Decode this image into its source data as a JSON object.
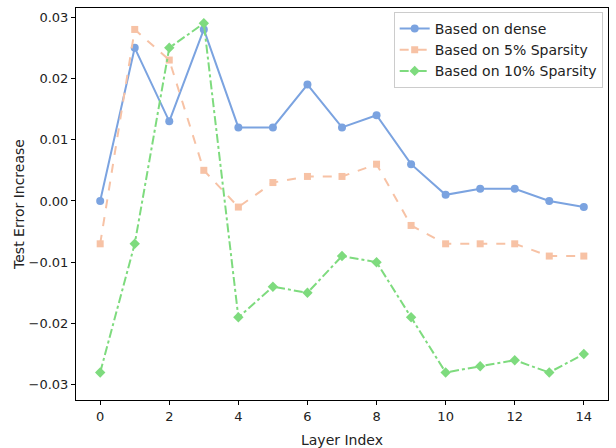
{
  "chart_data": {
    "type": "line",
    "x_label": "Layer Index",
    "y_label": "Test Error Increase",
    "x": [
      0,
      1,
      2,
      3,
      4,
      5,
      6,
      7,
      8,
      9,
      10,
      11,
      12,
      13,
      14
    ],
    "series": [
      {
        "name": "Based on dense",
        "color": "#7ba3e0",
        "marker": "circle",
        "line_style": "solid",
        "values": [
          0.0,
          0.025,
          0.013,
          0.028,
          0.012,
          0.012,
          0.019,
          0.012,
          0.014,
          0.006,
          0.001,
          0.002,
          0.002,
          0.0,
          -0.001
        ]
      },
      {
        "name": "Based on 5% Sparsity",
        "color": "#f7c2a5",
        "marker": "square",
        "line_style": "dash",
        "values": [
          -0.007,
          0.028,
          0.023,
          0.005,
          -0.001,
          0.003,
          0.004,
          0.004,
          0.006,
          -0.004,
          -0.007,
          -0.007,
          -0.007,
          -0.009,
          -0.009
        ]
      },
      {
        "name": "Based on 10% Sparsity",
        "color": "#7edb7e",
        "marker": "diamond",
        "line_style": "dashdot",
        "values": [
          -0.028,
          -0.007,
          0.025,
          0.029,
          -0.019,
          -0.014,
          -0.015,
          -0.009,
          -0.01,
          -0.019,
          -0.028,
          -0.027,
          -0.026,
          -0.028,
          -0.025
        ]
      }
    ],
    "xlim": [
      -0.7,
      14.7
    ],
    "xticks": [
      0,
      2,
      4,
      6,
      8,
      10,
      12,
      14
    ],
    "ylim": [
      -0.0325,
      0.0315
    ],
    "yticks": [
      {
        "value": -0.03,
        "label": "−0.03"
      },
      {
        "value": -0.02,
        "label": "−0.02"
      },
      {
        "value": -0.01,
        "label": "−0.01"
      },
      {
        "value": 0,
        "label": "0.00"
      },
      0.01,
      0.02,
      0.03
    ],
    "grid": false,
    "legend": "upper right"
  }
}
